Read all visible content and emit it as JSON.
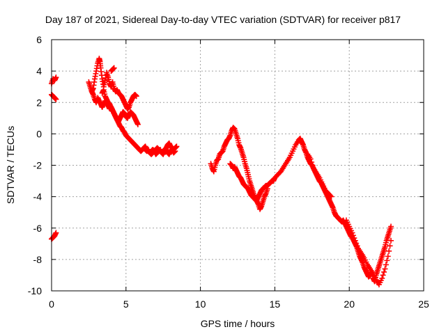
{
  "chart_data": {
    "type": "scatter",
    "title": "Day 187 of 2021, Sidereal Day-to-day VTEC variation (SDTVAR) for receiver p817",
    "xlabel": "GPS time / hours",
    "ylabel": "SDTVAR / TECUs",
    "xlim": [
      0,
      25
    ],
    "ylim": [
      -10,
      6
    ],
    "xticks": [
      0,
      5,
      10,
      15,
      20,
      25
    ],
    "yticks": [
      -10,
      -8,
      -6,
      -4,
      -2,
      0,
      2,
      4,
      6
    ],
    "grid": true,
    "marker": "+",
    "marker_color": "#ff0000",
    "series": [
      {
        "name": "SDTVAR p817",
        "segments": [
          {
            "x": [
              0.0,
              0.1,
              0.2,
              0.3
            ],
            "y": [
              3.2,
              3.5,
              3.4,
              3.6
            ]
          },
          {
            "x": [
              0.0,
              0.1,
              0.2,
              0.3
            ],
            "y": [
              2.5,
              2.4,
              2.3,
              2.2
            ]
          },
          {
            "x": [
              0.0,
              0.1,
              0.2,
              0.3
            ],
            "y": [
              -6.7,
              -6.6,
              -6.5,
              -6.3
            ]
          },
          {
            "x": [
              2.5,
              2.6,
              2.7,
              2.8,
              2.9,
              3.0,
              3.1,
              3.2,
              3.25,
              3.3,
              3.4,
              3.5,
              3.6,
              3.7,
              3.8,
              3.9,
              4.0,
              4.1,
              4.2,
              4.3,
              4.4,
              4.5,
              4.6,
              4.7,
              4.8,
              4.9,
              5.0,
              5.1,
              5.2,
              5.3,
              5.4,
              5.5,
              5.6,
              5.7
            ],
            "y": [
              3.3,
              3.0,
              2.7,
              2.9,
              3.5,
              4.0,
              4.5,
              4.8,
              4.6,
              4.2,
              3.5,
              3.0,
              3.4,
              3.9,
              3.6,
              3.2,
              3.0,
              3.3,
              2.9,
              2.7,
              2.8,
              2.6,
              2.5,
              2.4,
              2.2,
              2.0,
              1.8,
              1.6,
              1.7,
              2.0,
              2.2,
              2.4,
              2.5,
              2.4
            ]
          },
          {
            "x": [
              2.7,
              2.8,
              2.9,
              3.0,
              3.1,
              3.2,
              3.3,
              3.4,
              3.5,
              3.6,
              3.7,
              3.8,
              3.9,
              4.0,
              4.1,
              4.2,
              4.3,
              4.4,
              4.5,
              4.6,
              4.7,
              4.8,
              4.9,
              5.0,
              5.1,
              5.2,
              5.3,
              5.4,
              5.5,
              5.6,
              5.7,
              5.8
            ],
            "y": [
              2.7,
              2.5,
              2.2,
              2.0,
              2.3,
              2.1,
              1.9,
              1.7,
              1.9,
              2.1,
              2.0,
              1.8,
              1.6,
              1.7,
              1.5,
              1.3,
              1.1,
              0.9,
              0.8,
              1.0,
              1.2,
              1.4,
              1.3,
              1.1,
              1.0,
              1.2,
              1.4,
              1.3,
              1.2,
              1.0,
              0.8,
              0.6
            ]
          },
          {
            "x": [
              3.4,
              3.5,
              3.6,
              3.7,
              3.8,
              3.9,
              4.0,
              4.1,
              4.2,
              4.3,
              4.4,
              4.5,
              4.6,
              4.7,
              4.8,
              4.9,
              5.0,
              5.1,
              5.2,
              5.3,
              5.4,
              5.5,
              5.6,
              5.7,
              5.8,
              5.9,
              6.0,
              6.1,
              6.2,
              6.3,
              6.4,
              6.5,
              6.6,
              6.7,
              6.8,
              6.9,
              7.0,
              7.1,
              7.2,
              7.3,
              7.4,
              7.5,
              7.6,
              7.7,
              7.8,
              7.9,
              8.0,
              8.1,
              8.2,
              8.3,
              8.4
            ],
            "y": [
              2.6,
              2.8,
              2.4,
              2.2,
              2.0,
              1.9,
              1.7,
              1.5,
              1.3,
              1.1,
              0.9,
              0.7,
              0.5,
              0.4,
              0.2,
              0.1,
              -0.1,
              -0.2,
              -0.3,
              -0.4,
              -0.5,
              -0.6,
              -0.7,
              -0.8,
              -0.9,
              -1.0,
              -1.1,
              -1.0,
              -0.9,
              -1.0,
              -1.1,
              -1.0,
              -1.2,
              -1.1,
              -1.0,
              -1.1,
              -1.0,
              -0.9,
              -1.0,
              -1.1,
              -1.2,
              -1.1,
              -1.0,
              -0.9,
              -0.7,
              -0.6,
              -0.8,
              -0.9,
              -1.0,
              -0.9,
              -0.8
            ]
          },
          {
            "x": [
              4.0,
              4.1,
              4.2
            ],
            "y": [
              4.0,
              4.1,
              4.2
            ]
          },
          {
            "x": [
              6.2,
              6.3,
              6.4,
              6.5,
              6.6,
              6.7,
              6.8,
              6.9,
              7.0,
              7.1,
              7.2,
              7.3,
              7.4,
              7.5,
              7.6,
              7.7,
              7.8,
              7.9,
              8.0,
              8.1,
              8.2,
              8.3
            ],
            "y": [
              -0.9,
              -0.8,
              -1.0,
              -1.1,
              -1.2,
              -1.3,
              -1.2,
              -1.1,
              -1.3,
              -1.2,
              -1.1,
              -1.0,
              -1.2,
              -1.3,
              -1.1,
              -1.0,
              -1.2,
              -1.3,
              -1.1,
              -1.0,
              -1.2,
              -1.1
            ]
          },
          {
            "x": [
              10.7,
              10.8,
              10.9,
              11.0,
              11.1,
              11.2,
              11.3,
              11.4,
              11.5,
              11.6,
              11.7,
              11.8,
              11.9,
              12.0,
              12.1,
              12.2,
              12.3,
              12.4,
              12.5,
              12.6,
              12.7,
              12.8,
              12.9,
              13.0,
              13.1,
              13.2,
              13.3,
              13.4,
              13.5,
              13.6,
              13.7,
              13.8,
              13.9,
              14.0,
              14.1,
              14.2,
              14.3,
              14.4,
              14.5,
              14.6,
              14.7,
              14.8,
              14.9,
              15.0,
              15.2,
              15.4,
              15.6,
              15.8,
              16.0,
              16.2,
              16.4,
              16.6,
              16.7
            ],
            "y": [
              -1.9,
              -2.2,
              -2.4,
              -2.0,
              -1.7,
              -1.6,
              -1.3,
              -1.2,
              -1.1,
              -0.8,
              -0.6,
              -0.4,
              -0.3,
              -0.1,
              0.2,
              0.4,
              0.3,
              0.0,
              -0.3,
              -0.7,
              -0.9,
              -1.2,
              -1.5,
              -1.9,
              -2.2,
              -2.6,
              -3.0,
              -3.3,
              -3.6,
              -3.9,
              -4.1,
              -4.2,
              -4.0,
              -3.8,
              -3.6,
              -3.5,
              -3.4,
              -3.3,
              -3.3,
              -3.2,
              -3.1,
              -3.0,
              -3.0,
              -2.8,
              -2.6,
              -2.4,
              -2.1,
              -1.8,
              -1.5,
              -1.1,
              -0.7,
              -0.4,
              -0.3
            ]
          },
          {
            "x": [
              12.0,
              12.1,
              12.2,
              12.3,
              12.4,
              12.5,
              12.6,
              12.7,
              12.8,
              12.9,
              13.0,
              13.1,
              13.2,
              13.3,
              13.4,
              13.5,
              13.6,
              13.7,
              13.8,
              13.9,
              14.0,
              14.1,
              14.2,
              14.3,
              14.4,
              14.5
            ],
            "y": [
              -1.9,
              -2.0,
              -2.2,
              -2.1,
              -2.3,
              -2.5,
              -2.7,
              -2.8,
              -3.0,
              -3.2,
              -3.3,
              -3.4,
              -3.5,
              -3.7,
              -3.9,
              -4.0,
              -4.1,
              -4.2,
              -4.3,
              -4.5,
              -4.8,
              -4.6,
              -4.3,
              -4.0,
              -3.8,
              -3.5
            ]
          },
          {
            "x": [
              16.7,
              16.8,
              16.9,
              17.0,
              17.1,
              17.2,
              17.3,
              17.4,
              17.5,
              17.6,
              17.7,
              17.8,
              17.9,
              18.0,
              18.1,
              18.2,
              18.3,
              18.4,
              18.5,
              18.6,
              18.7,
              18.8,
              18.9,
              19.0,
              19.1,
              19.2,
              19.3,
              19.4,
              19.5,
              19.6,
              19.7,
              19.8,
              19.9,
              20.0,
              20.1,
              20.2,
              20.3,
              20.4,
              20.5,
              20.6,
              20.7,
              20.8,
              20.9,
              21.0,
              21.1,
              21.2,
              21.3,
              21.4,
              21.5,
              21.6,
              21.7,
              21.8,
              21.9,
              22.0,
              22.1,
              22.2,
              22.3,
              22.4,
              22.5,
              22.6,
              22.7,
              22.8
            ],
            "y": [
              -0.3,
              -0.5,
              -0.7,
              -1.0,
              -1.2,
              -1.5,
              -1.7,
              -1.9,
              -2.0,
              -2.2,
              -2.4,
              -2.6,
              -2.8,
              -3.0,
              -3.1,
              -3.3,
              -3.5,
              -3.7,
              -3.9,
              -4.1,
              -4.3,
              -4.5,
              -4.7,
              -5.0,
              -5.2,
              -5.3,
              -5.4,
              -5.5,
              -5.6,
              -5.5,
              -5.7,
              -5.9,
              -6.1,
              -6.3,
              -6.5,
              -6.6,
              -6.8,
              -7.0,
              -7.2,
              -7.5,
              -7.8,
              -8.0,
              -8.2,
              -8.5,
              -8.7,
              -8.9,
              -9.1,
              -9.0,
              -8.8,
              -9.2,
              -9.4,
              -9.0,
              -8.7,
              -8.4,
              -8.1,
              -7.8,
              -7.5,
              -7.2,
              -6.8,
              -6.5,
              -6.2,
              -5.9
            ]
          },
          {
            "x": [
              17.2,
              17.4,
              17.6,
              17.8,
              18.0,
              18.2,
              18.4,
              18.6,
              18.8
            ],
            "y": [
              -1.3,
              -1.6,
              -2.2,
              -2.5,
              -2.8,
              -3.2,
              -3.6,
              -3.8,
              -4.0
            ]
          },
          {
            "x": [
              19.8,
              20.0,
              20.2,
              20.4,
              20.6,
              20.8,
              21.0,
              21.2,
              21.4,
              21.6,
              21.8,
              22.0,
              22.2,
              22.4,
              22.6,
              22.8
            ],
            "y": [
              -5.5,
              -5.9,
              -6.3,
              -6.8,
              -7.3,
              -7.6,
              -7.9,
              -8.3,
              -8.6,
              -8.9,
              -9.3,
              -9.6,
              -9.2,
              -8.6,
              -7.8,
              -6.8
            ]
          }
        ]
      }
    ]
  }
}
